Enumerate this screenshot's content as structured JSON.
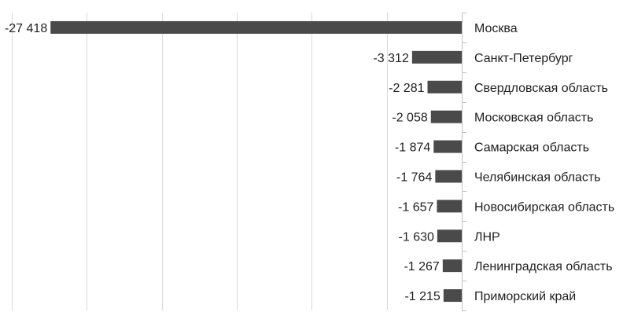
{
  "chart_data": {
    "type": "bar",
    "orientation": "horizontal",
    "categories": [
      "Москва",
      "Санкт-Петербург",
      "Свердловская область",
      "Московская область",
      "Самарская область",
      "Челябинская область",
      "Новосибирская область",
      "ЛНР",
      "Ленинградская область",
      "Приморский край"
    ],
    "values": [
      -27418,
      -3312,
      -2281,
      -2058,
      -1874,
      -1764,
      -1657,
      -1630,
      -1267,
      -1215
    ],
    "value_labels": [
      "-27 418",
      "-3 312",
      "-2 281",
      "-2 058",
      "-1 874",
      "-1 764",
      "-1 657",
      "-1 630",
      "-1 267",
      "-1 215"
    ],
    "xlim": [
      -30000,
      0
    ],
    "x_gridline_step": 5000,
    "grid": true,
    "category_axis_position": "right",
    "legend": "none",
    "bar_color": "#4a4a4a",
    "title": "",
    "xlabel": "",
    "ylabel": ""
  }
}
